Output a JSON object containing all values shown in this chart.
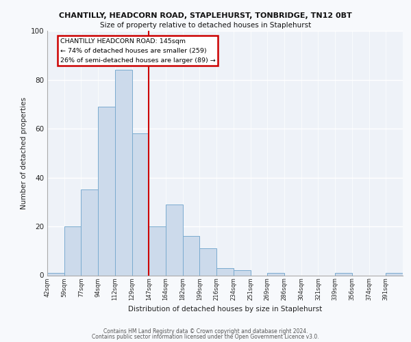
{
  "title": "CHANTILLY, HEADCORN ROAD, STAPLEHURST, TONBRIDGE, TN12 0BT",
  "subtitle": "Size of property relative to detached houses in Staplehurst",
  "xlabel": "Distribution of detached houses by size in Staplehurst",
  "ylabel": "Number of detached properties",
  "bar_color": "#ccdaeb",
  "bar_edge_color": "#7aabcf",
  "background_color": "#eef2f8",
  "grid_color": "#ffffff",
  "bin_labels": [
    "42sqm",
    "59sqm",
    "77sqm",
    "94sqm",
    "112sqm",
    "129sqm",
    "147sqm",
    "164sqm",
    "182sqm",
    "199sqm",
    "216sqm",
    "234sqm",
    "251sqm",
    "269sqm",
    "286sqm",
    "304sqm",
    "321sqm",
    "339sqm",
    "356sqm",
    "374sqm",
    "391sqm"
  ],
  "bar_heights": [
    1,
    20,
    35,
    69,
    84,
    58,
    20,
    29,
    16,
    11,
    3,
    2,
    0,
    1,
    0,
    0,
    0,
    1,
    0,
    0,
    1
  ],
  "vline_color": "#cc0000",
  "vline_pos": 6,
  "ylim": [
    0,
    100
  ],
  "yticks": [
    0,
    20,
    40,
    60,
    80,
    100
  ],
  "annotation_title": "CHANTILLY HEADCORN ROAD: 145sqm",
  "annotation_line1": "← 74% of detached houses are smaller (259)",
  "annotation_line2": "26% of semi-detached houses are larger (89) →",
  "annotation_box_color": "#ffffff",
  "annotation_box_edge": "#cc0000",
  "footer1": "Contains HM Land Registry data © Crown copyright and database right 2024.",
  "footer2": "Contains public sector information licensed under the Open Government Licence v3.0.",
  "fig_bg": "#f7f9fc"
}
